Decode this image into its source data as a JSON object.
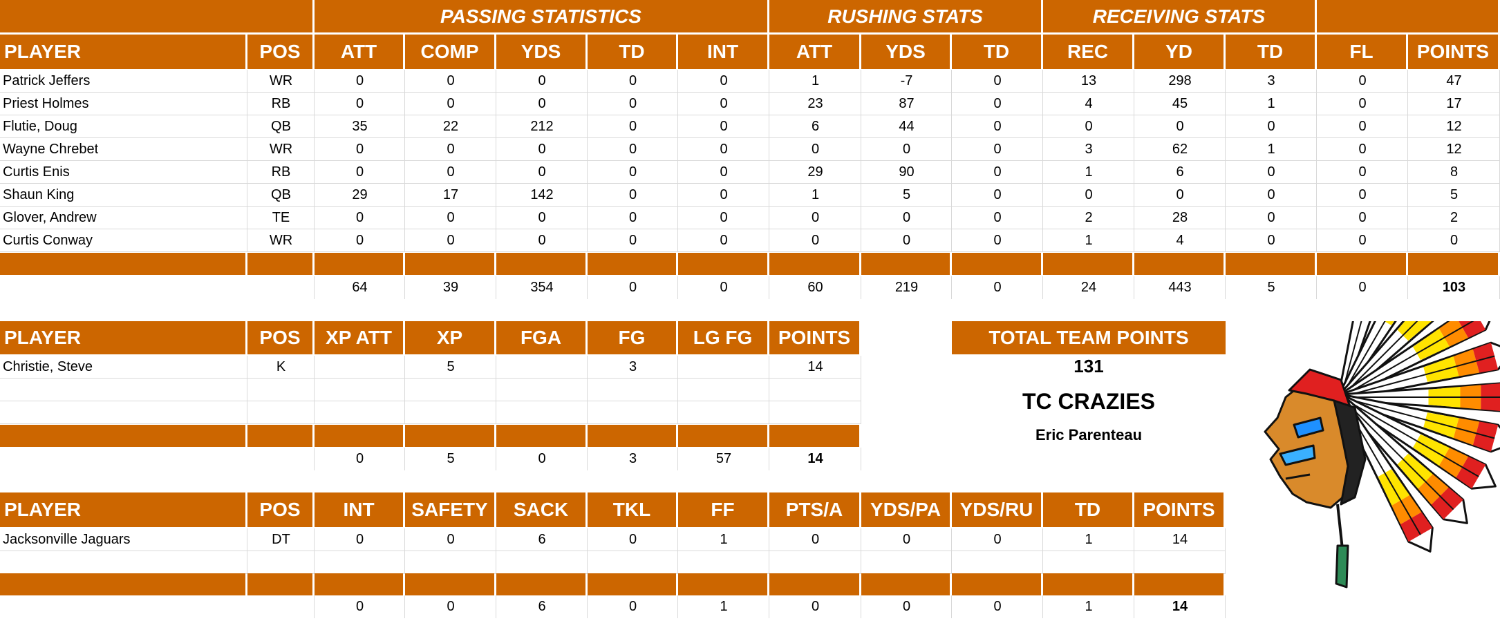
{
  "offense": {
    "section_headers": [
      "PASSING STATISTICS",
      "RUSHING STATS",
      "RECEIVING STATS"
    ],
    "columns": [
      "PLAYER",
      "POS",
      "ATT",
      "COMP",
      "YDS",
      "TD",
      "INT",
      "ATT",
      "YDS",
      "TD",
      "REC",
      "YD",
      "TD",
      "FL",
      "POINTS"
    ],
    "rows": [
      [
        "Patrick Jeffers",
        "WR",
        "0",
        "0",
        "0",
        "0",
        "0",
        "1",
        "-7",
        "0",
        "13",
        "298",
        "3",
        "0",
        "47"
      ],
      [
        "Priest Holmes",
        "RB",
        "0",
        "0",
        "0",
        "0",
        "0",
        "23",
        "87",
        "0",
        "4",
        "45",
        "1",
        "0",
        "17"
      ],
      [
        "Flutie, Doug",
        "QB",
        "35",
        "22",
        "212",
        "0",
        "0",
        "6",
        "44",
        "0",
        "0",
        "0",
        "0",
        "0",
        "12"
      ],
      [
        "Wayne Chrebet",
        "WR",
        "0",
        "0",
        "0",
        "0",
        "0",
        "0",
        "0",
        "0",
        "3",
        "62",
        "1",
        "0",
        "12"
      ],
      [
        "Curtis Enis",
        "RB",
        "0",
        "0",
        "0",
        "0",
        "0",
        "29",
        "90",
        "0",
        "1",
        "6",
        "0",
        "0",
        "8"
      ],
      [
        "Shaun King",
        "QB",
        "29",
        "17",
        "142",
        "0",
        "0",
        "1",
        "5",
        "0",
        "0",
        "0",
        "0",
        "0",
        "5"
      ],
      [
        "Glover, Andrew",
        "TE",
        "0",
        "0",
        "0",
        "0",
        "0",
        "0",
        "0",
        "0",
        "2",
        "28",
        "0",
        "0",
        "2"
      ],
      [
        "Curtis Conway",
        "WR",
        "0",
        "0",
        "0",
        "0",
        "0",
        "0",
        "0",
        "0",
        "1",
        "4",
        "0",
        "0",
        "0"
      ]
    ],
    "totals": [
      "",
      "",
      "64",
      "39",
      "354",
      "0",
      "0",
      "60",
      "219",
      "0",
      "24",
      "443",
      "5",
      "0",
      "103"
    ]
  },
  "kicking": {
    "columns": [
      "PLAYER",
      "POS",
      "XP ATT",
      "XP",
      "FGA",
      "FG",
      "LG FG",
      "POINTS"
    ],
    "rows": [
      [
        "Christie, Steve",
        "K",
        "",
        "5",
        "",
        "3",
        "",
        "14"
      ],
      [
        "",
        "",
        "",
        "",
        "",
        "",
        "",
        ""
      ],
      [
        "",
        "",
        "",
        "",
        "",
        "",
        "",
        ""
      ]
    ],
    "totals": [
      "",
      "",
      "0",
      "5",
      "0",
      "3",
      "57",
      "14"
    ]
  },
  "defense": {
    "columns": [
      "PLAYER",
      "POS",
      "INT",
      "SAFETY",
      "SACK",
      "TKL",
      "FF",
      "PTS/A",
      "YDS/PA",
      "YDS/RU",
      "TD",
      "POINTS"
    ],
    "rows": [
      [
        "Jacksonville Jaguars",
        "DT",
        "0",
        "0",
        "6",
        "0",
        "1",
        "0",
        "0",
        "0",
        "1",
        "14"
      ],
      [
        "",
        "",
        "",
        "",
        "",
        "",
        "",
        "",
        "",
        "",
        "",
        ""
      ]
    ],
    "totals": [
      "",
      "",
      "0",
      "0",
      "6",
      "0",
      "1",
      "0",
      "0",
      "0",
      "1",
      "14"
    ]
  },
  "team": {
    "total_label": "TOTAL TEAM POINTS",
    "total_points": "131",
    "team_name": "TC CRAZIES",
    "owner": "Eric Parenteau",
    "logo_icon": "chief-headdress-logo"
  },
  "colors": {
    "header_orange": "#CC6600",
    "grid": "#d9d9d9"
  }
}
